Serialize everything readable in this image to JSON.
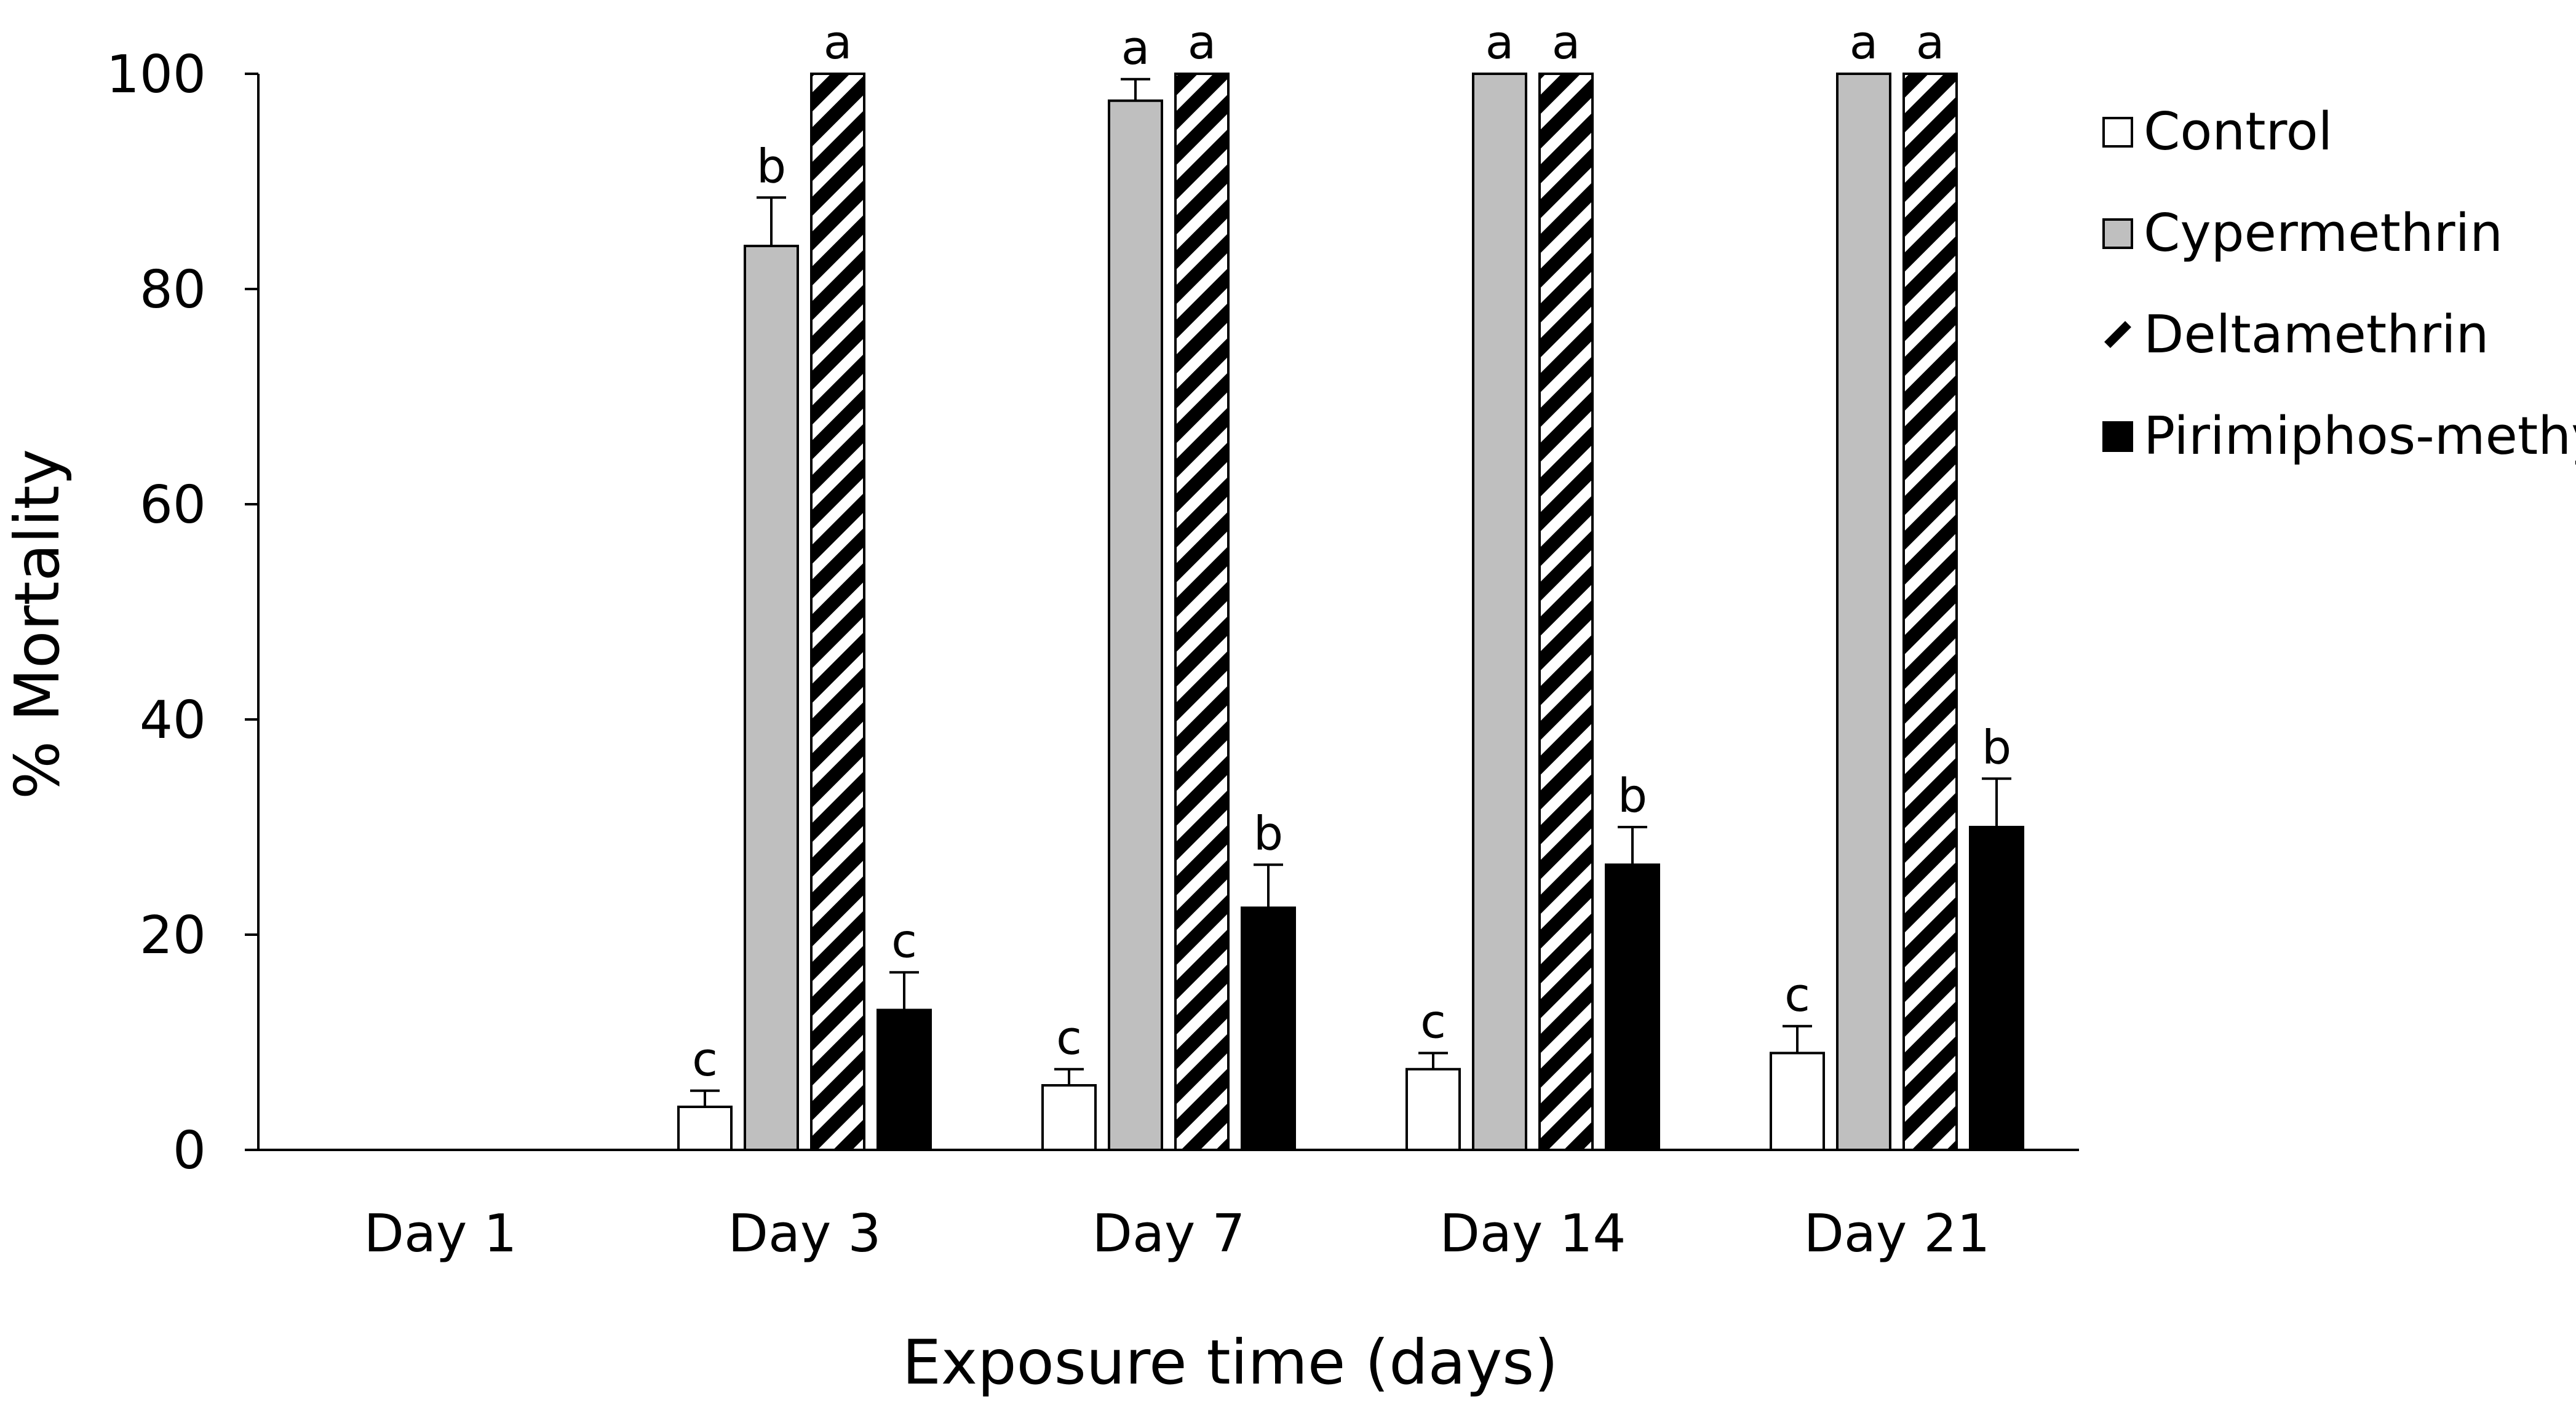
{
  "chart_data": {
    "type": "bar",
    "title": "",
    "xlabel": "Exposure time (days)",
    "ylabel": "% Mortality",
    "ylim": [
      0,
      100
    ],
    "yticks": [
      0,
      20,
      40,
      60,
      80,
      100
    ],
    "grid": false,
    "legend_position": "right",
    "categories": [
      "Day 1",
      "Day 3",
      "Day 7",
      "Day 14",
      "Day 21"
    ],
    "series": [
      {
        "name": "Control",
        "fill": "#ffffff",
        "pattern": "none",
        "values": [
          0,
          4,
          6,
          7.5,
          9
        ],
        "errors": [
          0,
          1.5,
          1.5,
          1.5,
          2.5
        ],
        "significance": [
          "",
          "c",
          "c",
          "c",
          "c"
        ]
      },
      {
        "name": "Cypermethrin",
        "fill": "#bfbfbf",
        "pattern": "none",
        "values": [
          0,
          84,
          97.5,
          100,
          100
        ],
        "errors": [
          0,
          4.5,
          2,
          0,
          0
        ],
        "significance": [
          "",
          "b",
          "a",
          "a",
          "a"
        ]
      },
      {
        "name": "Deltamethrin",
        "fill": "#ffffff",
        "pattern": "diagonal-stripes",
        "values": [
          0,
          100,
          100,
          100,
          100
        ],
        "errors": [
          0,
          0,
          0,
          0,
          0
        ],
        "significance": [
          "",
          "a",
          "a",
          "a",
          "a"
        ]
      },
      {
        "name": "Pirimiphos-methyl",
        "fill": "#000000",
        "pattern": "none",
        "values": [
          0,
          13,
          22.5,
          26.5,
          30
        ],
        "errors": [
          0,
          3.5,
          4,
          3.5,
          4.5
        ],
        "significance": [
          "",
          "c",
          "b",
          "b",
          "b"
        ]
      }
    ]
  }
}
